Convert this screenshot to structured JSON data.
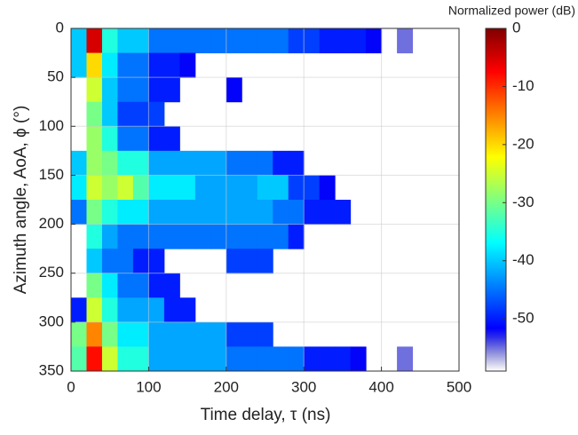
{
  "chart_data": {
    "type": "heatmap",
    "xlabel": "Time delay, τ (ns)",
    "ylabel": "Azimuth angle, AoA, ϕ (°)",
    "colorbar_label": "Normalized power (dB)",
    "x_bins": [
      0,
      20,
      40,
      60,
      80,
      100,
      120,
      140,
      160,
      180,
      200,
      220,
      240,
      260,
      280,
      300,
      320,
      340,
      360,
      380,
      400,
      420,
      440,
      460,
      480,
      500
    ],
    "y_bins": [
      0,
      25,
      50,
      75,
      100,
      125,
      150,
      175,
      200,
      225,
      250,
      275,
      300,
      325,
      350
    ],
    "values": [
      [
        -40,
        -5,
        -35,
        -40,
        -40,
        -45,
        -45,
        -45,
        -45,
        -45,
        -45,
        -45,
        -45,
        -45,
        -48,
        -48,
        -50,
        -50,
        -50,
        -52,
        null,
        -55,
        null,
        null,
        null
      ],
      [
        -40,
        -20,
        -38,
        -45,
        -45,
        -50,
        -50,
        -52,
        null,
        null,
        null,
        null,
        null,
        null,
        null,
        null,
        null,
        null,
        null,
        null,
        null,
        null,
        null,
        null,
        null
      ],
      [
        null,
        -25,
        -40,
        -45,
        -45,
        -50,
        -50,
        null,
        null,
        null,
        -52,
        null,
        null,
        null,
        null,
        null,
        null,
        null,
        null,
        null,
        null,
        null,
        null,
        null,
        null
      ],
      [
        null,
        -30,
        -40,
        -48,
        -48,
        -48,
        null,
        null,
        null,
        null,
        null,
        null,
        null,
        null,
        null,
        null,
        null,
        null,
        null,
        null,
        null,
        null,
        null,
        null,
        null
      ],
      [
        null,
        -28,
        -35,
        -45,
        -45,
        -50,
        -50,
        null,
        null,
        null,
        null,
        null,
        null,
        null,
        null,
        null,
        null,
        null,
        null,
        null,
        null,
        null,
        null,
        null,
        null
      ],
      [
        -40,
        -28,
        -30,
        -35,
        -35,
        -42,
        -42,
        -42,
        -42,
        -42,
        -45,
        -45,
        -45,
        -50,
        -50,
        null,
        null,
        null,
        null,
        null,
        null,
        null,
        null,
        null,
        null
      ],
      [
        -38,
        -25,
        -28,
        -25,
        -32,
        -38,
        -38,
        -38,
        -42,
        -42,
        -42,
        -42,
        -40,
        -40,
        -48,
        -48,
        -52,
        null,
        null,
        null,
        null,
        null,
        null,
        null,
        null
      ],
      [
        -45,
        -30,
        -35,
        -38,
        -38,
        -42,
        -42,
        -42,
        -42,
        -42,
        -42,
        -42,
        -42,
        -45,
        -45,
        -50,
        -50,
        -50,
        null,
        null,
        null,
        null,
        null,
        null,
        null
      ],
      [
        null,
        -35,
        -42,
        -45,
        -45,
        -45,
        -45,
        -45,
        -45,
        -45,
        -45,
        -45,
        -45,
        -45,
        -50,
        null,
        null,
        null,
        null,
        null,
        null,
        null,
        null,
        null,
        null
      ],
      [
        null,
        -40,
        -45,
        -45,
        -50,
        -50,
        null,
        null,
        null,
        null,
        -48,
        -48,
        -48,
        null,
        null,
        null,
        null,
        null,
        null,
        null,
        null,
        null,
        null,
        null,
        null
      ],
      [
        null,
        -30,
        -38,
        -45,
        -45,
        -50,
        -50,
        null,
        null,
        null,
        null,
        null,
        null,
        null,
        null,
        null,
        null,
        null,
        null,
        null,
        null,
        null,
        null,
        null,
        null
      ],
      [
        -50,
        -25,
        -35,
        -42,
        -42,
        -42,
        -50,
        -50,
        null,
        null,
        null,
        null,
        null,
        null,
        null,
        null,
        null,
        null,
        null,
        null,
        null,
        null,
        null,
        null,
        null
      ],
      [
        -30,
        -15,
        -30,
        -38,
        -38,
        -42,
        -42,
        -42,
        -42,
        -42,
        -48,
        -48,
        -48,
        null,
        null,
        null,
        null,
        null,
        null,
        null,
        null,
        null,
        null,
        null,
        null
      ],
      [
        -32,
        -8,
        -25,
        -35,
        -35,
        -42,
        -42,
        -42,
        -42,
        -42,
        -45,
        -45,
        -45,
        -45,
        -45,
        -50,
        -50,
        -50,
        -52,
        null,
        null,
        -55,
        null,
        null,
        null
      ]
    ],
    "xlim": [
      0,
      500
    ],
    "xticks": [
      0,
      100,
      200,
      300,
      400,
      500
    ],
    "ylim": [
      0,
      350
    ],
    "yticks": [
      0,
      50,
      100,
      150,
      200,
      250,
      300,
      350
    ],
    "y_reversed": true,
    "clim": [
      -59,
      0
    ],
    "cticks": [
      0,
      -10,
      -20,
      -30,
      -40,
      -50
    ],
    "grid": true
  }
}
